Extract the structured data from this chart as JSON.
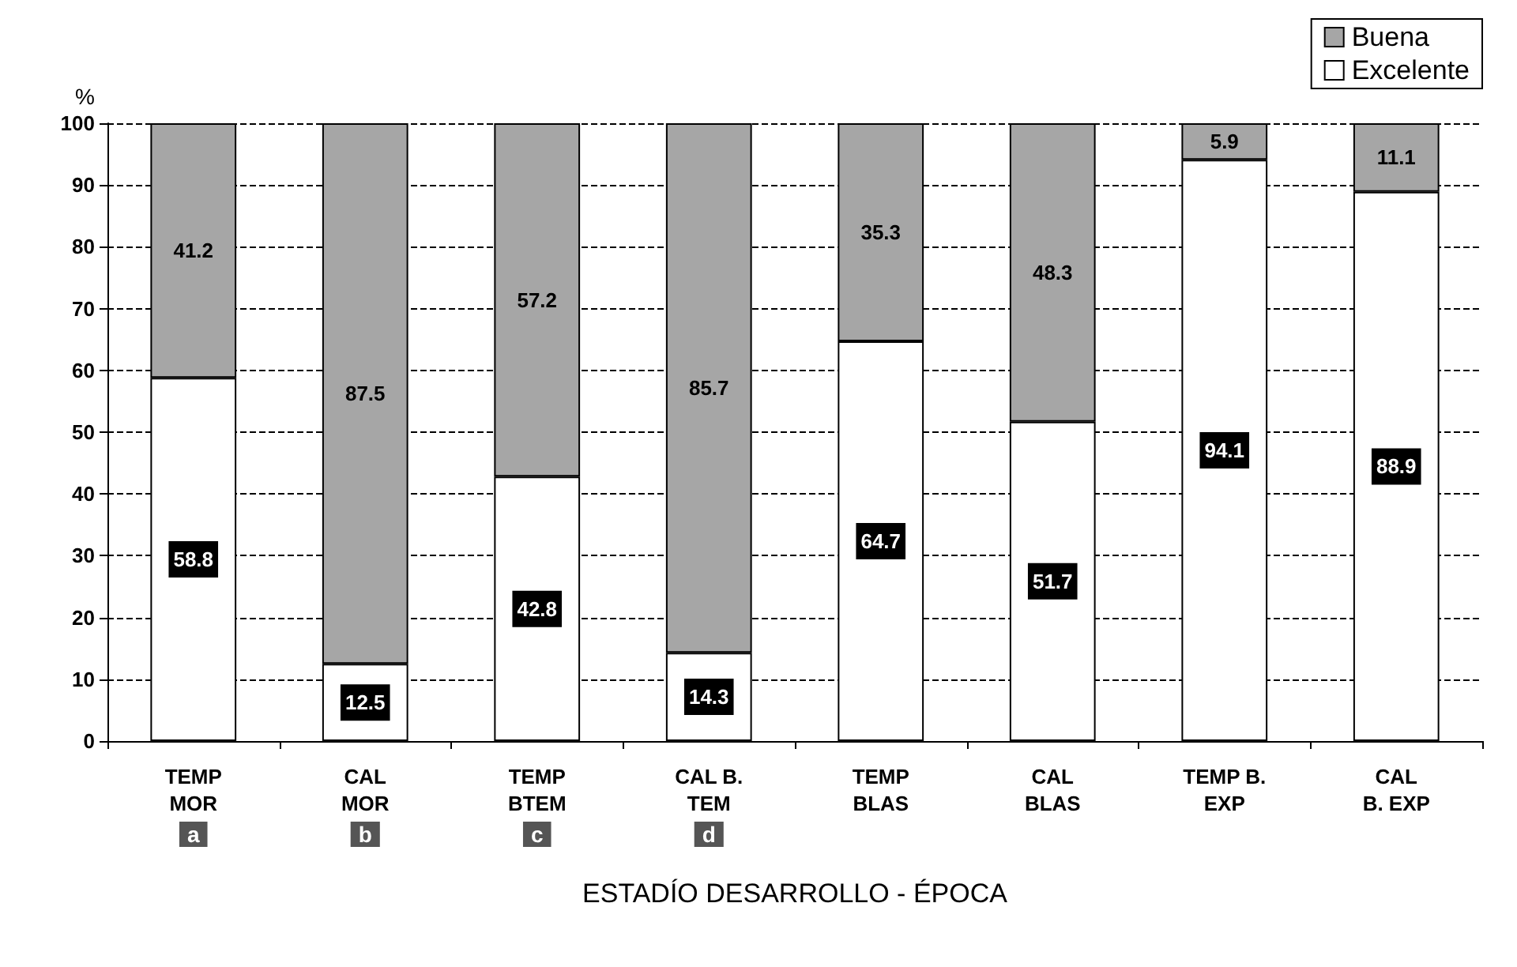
{
  "chart_data": {
    "type": "bar",
    "stacked": true,
    "xlabel": "ESTADÍO DESARROLLO - ÉPOCA",
    "ylabel": "%",
    "categories": [
      "TEMP\nMOR",
      "CAL\nMOR",
      "TEMP\nBTEM",
      "CAL B.\nTEM",
      "TEMP\nBLAS",
      "CAL\nBLAS",
      "TEMP B.\nEXP",
      "CAL\nB. EXP"
    ],
    "series": [
      {
        "name": "Excelente",
        "color": "#ffffff",
        "values": [
          58.8,
          12.5,
          42.8,
          14.3,
          64.7,
          51.7,
          94.1,
          88.9
        ]
      },
      {
        "name": "Buena",
        "color": "#a6a6a6",
        "values": [
          41.2,
          87.5,
          57.2,
          85.7,
          35.3,
          48.3,
          5.9,
          11.1
        ]
      }
    ],
    "annotations": [
      "a",
      "b",
      "c",
      "d"
    ],
    "ylim": [
      0,
      100
    ],
    "yticks": [
      0,
      10,
      20,
      30,
      40,
      50,
      60,
      70,
      80,
      90,
      100
    ],
    "grid": "y",
    "legend": "top right",
    "data_labels": true
  }
}
